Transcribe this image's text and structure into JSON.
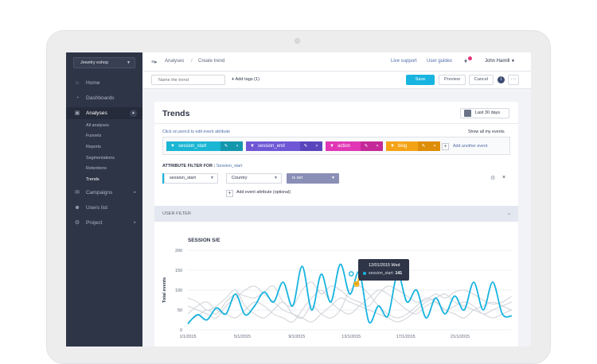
{
  "sidebar": {
    "project_selector": "Jewelry eshop",
    "items": [
      {
        "label": "Home",
        "icon": "home-icon"
      },
      {
        "label": "Dashboards",
        "icon": "dashboard-icon"
      },
      {
        "label": "Analyses",
        "icon": "analyses-icon",
        "active": true
      },
      {
        "label": "Campaigns",
        "icon": "campaigns-icon"
      },
      {
        "label": "Users list",
        "icon": "users-icon"
      },
      {
        "label": "Project",
        "icon": "gear-icon"
      }
    ],
    "subitems": [
      "All analyses",
      "Funnels",
      "Reports",
      "Segmentations",
      "Retentions",
      "Trends"
    ]
  },
  "topbar": {
    "breadcrumb": [
      "Analyses",
      "Create trend"
    ],
    "separator": "/",
    "links": [
      "Live support",
      "User guides"
    ],
    "user": "John Hamill"
  },
  "actionbar": {
    "name_placeholder": "Name the trend",
    "add_tags": "Add tags (1)",
    "save": "Save",
    "preview": "Preview",
    "cancel": "Cancel"
  },
  "trends": {
    "title": "Trends",
    "date_range": "Last 30 days",
    "hint": "Click on pencil to edit event attribute",
    "show_all": "Show all my events",
    "events": [
      {
        "label": "session_start",
        "color": "#1ab6d3",
        "dark": "#1397ad"
      },
      {
        "label": "session_end",
        "color": "#6f57d6",
        "dark": "#5a44bd"
      },
      {
        "label": "action",
        "color": "#e136b5",
        "dark": "#c52899"
      },
      {
        "label": "blog",
        "color": "#f5a316",
        "dark": "#dd8d08"
      }
    ],
    "add_event": "Add another event",
    "attr_filter_label": "ATTRIBUTE FILTER FOR :",
    "attr_filter_event": "Session_start",
    "filter_event": "session_start",
    "filter_attribute": "Country",
    "filter_operator": "is set",
    "add_attribute": "Add event attribute (optional)"
  },
  "user_filter": "USER FILTER",
  "chart": {
    "title": "SESSION S/E",
    "tooltip_date": "12/01/2015",
    "tooltip_day": "Wed",
    "tooltip_series": "session_start:",
    "tooltip_value": "141"
  },
  "chart_data": {
    "type": "line",
    "title": "SESSION S/E",
    "ylabel": "Total events",
    "ylim": [
      0,
      200
    ],
    "yticks": [
      0,
      50,
      100,
      150,
      200
    ],
    "xticks": [
      "1/1/2015",
      "5/1/2015",
      "9/1/2015",
      "13/1/2015",
      "17/1/2015",
      "21/1/2015"
    ],
    "x": [
      0,
      0.7,
      1.4,
      2.1,
      2.8,
      3.5,
      4.2,
      4.9,
      5.6,
      6.3,
      7,
      7.7,
      8.4,
      9.1,
      9.8,
      10.5,
      11.2,
      11.9,
      12.6,
      13.3,
      14,
      14.7,
      15.4,
      16.1,
      16.8,
      17.5,
      18.2,
      18.9,
      19.6,
      20.3,
      21,
      21.7,
      22.4,
      23.1,
      23.8
    ],
    "series": [
      {
        "color": "#18b4e0",
        "values": [
          15,
          38,
          25,
          55,
          40,
          90,
          38,
          60,
          95,
          70,
          120,
          60,
          160,
          50,
          140,
          70,
          165,
          90,
          145,
          20,
          60,
          35,
          140,
          70,
          100,
          30,
          80,
          40,
          85,
          50,
          120,
          50,
          120,
          40,
          35
        ]
      },
      {
        "color": "#cfd2d8",
        "values": [
          20,
          35,
          50,
          40,
          70,
          90,
          85,
          80,
          95,
          110,
          70,
          60,
          100,
          120,
          90,
          110,
          100,
          80,
          70,
          60,
          90,
          110,
          100,
          85,
          70,
          75,
          90,
          80,
          95,
          100,
          90,
          75,
          65,
          70,
          85
        ]
      },
      {
        "color": "#cfd2d8",
        "values": [
          40,
          60,
          70,
          50,
          40,
          30,
          50,
          70,
          60,
          40,
          30,
          20,
          50,
          80,
          100,
          70,
          50,
          40,
          60,
          80,
          100,
          90,
          70,
          50,
          40,
          60,
          70,
          50,
          40,
          30,
          50,
          60,
          70,
          60,
          50
        ]
      },
      {
        "color": "#cfd2d8",
        "values": [
          80,
          70,
          50,
          60,
          80,
          100,
          60,
          40,
          30,
          50,
          70,
          40,
          30,
          60,
          40,
          30,
          50,
          100,
          110,
          90,
          60,
          40,
          30,
          40,
          60,
          80,
          70,
          50,
          60,
          70,
          60,
          40,
          50,
          60,
          70
        ]
      },
      {
        "color": "#cfd2d8",
        "values": [
          60,
          50,
          40,
          30,
          60,
          80,
          100,
          110,
          90,
          70,
          50,
          40,
          30,
          20,
          40,
          60,
          80,
          70,
          60,
          50,
          40,
          30,
          20,
          30,
          50,
          70,
          80,
          90,
          70,
          60,
          50,
          40,
          30,
          40,
          50
        ]
      }
    ]
  }
}
